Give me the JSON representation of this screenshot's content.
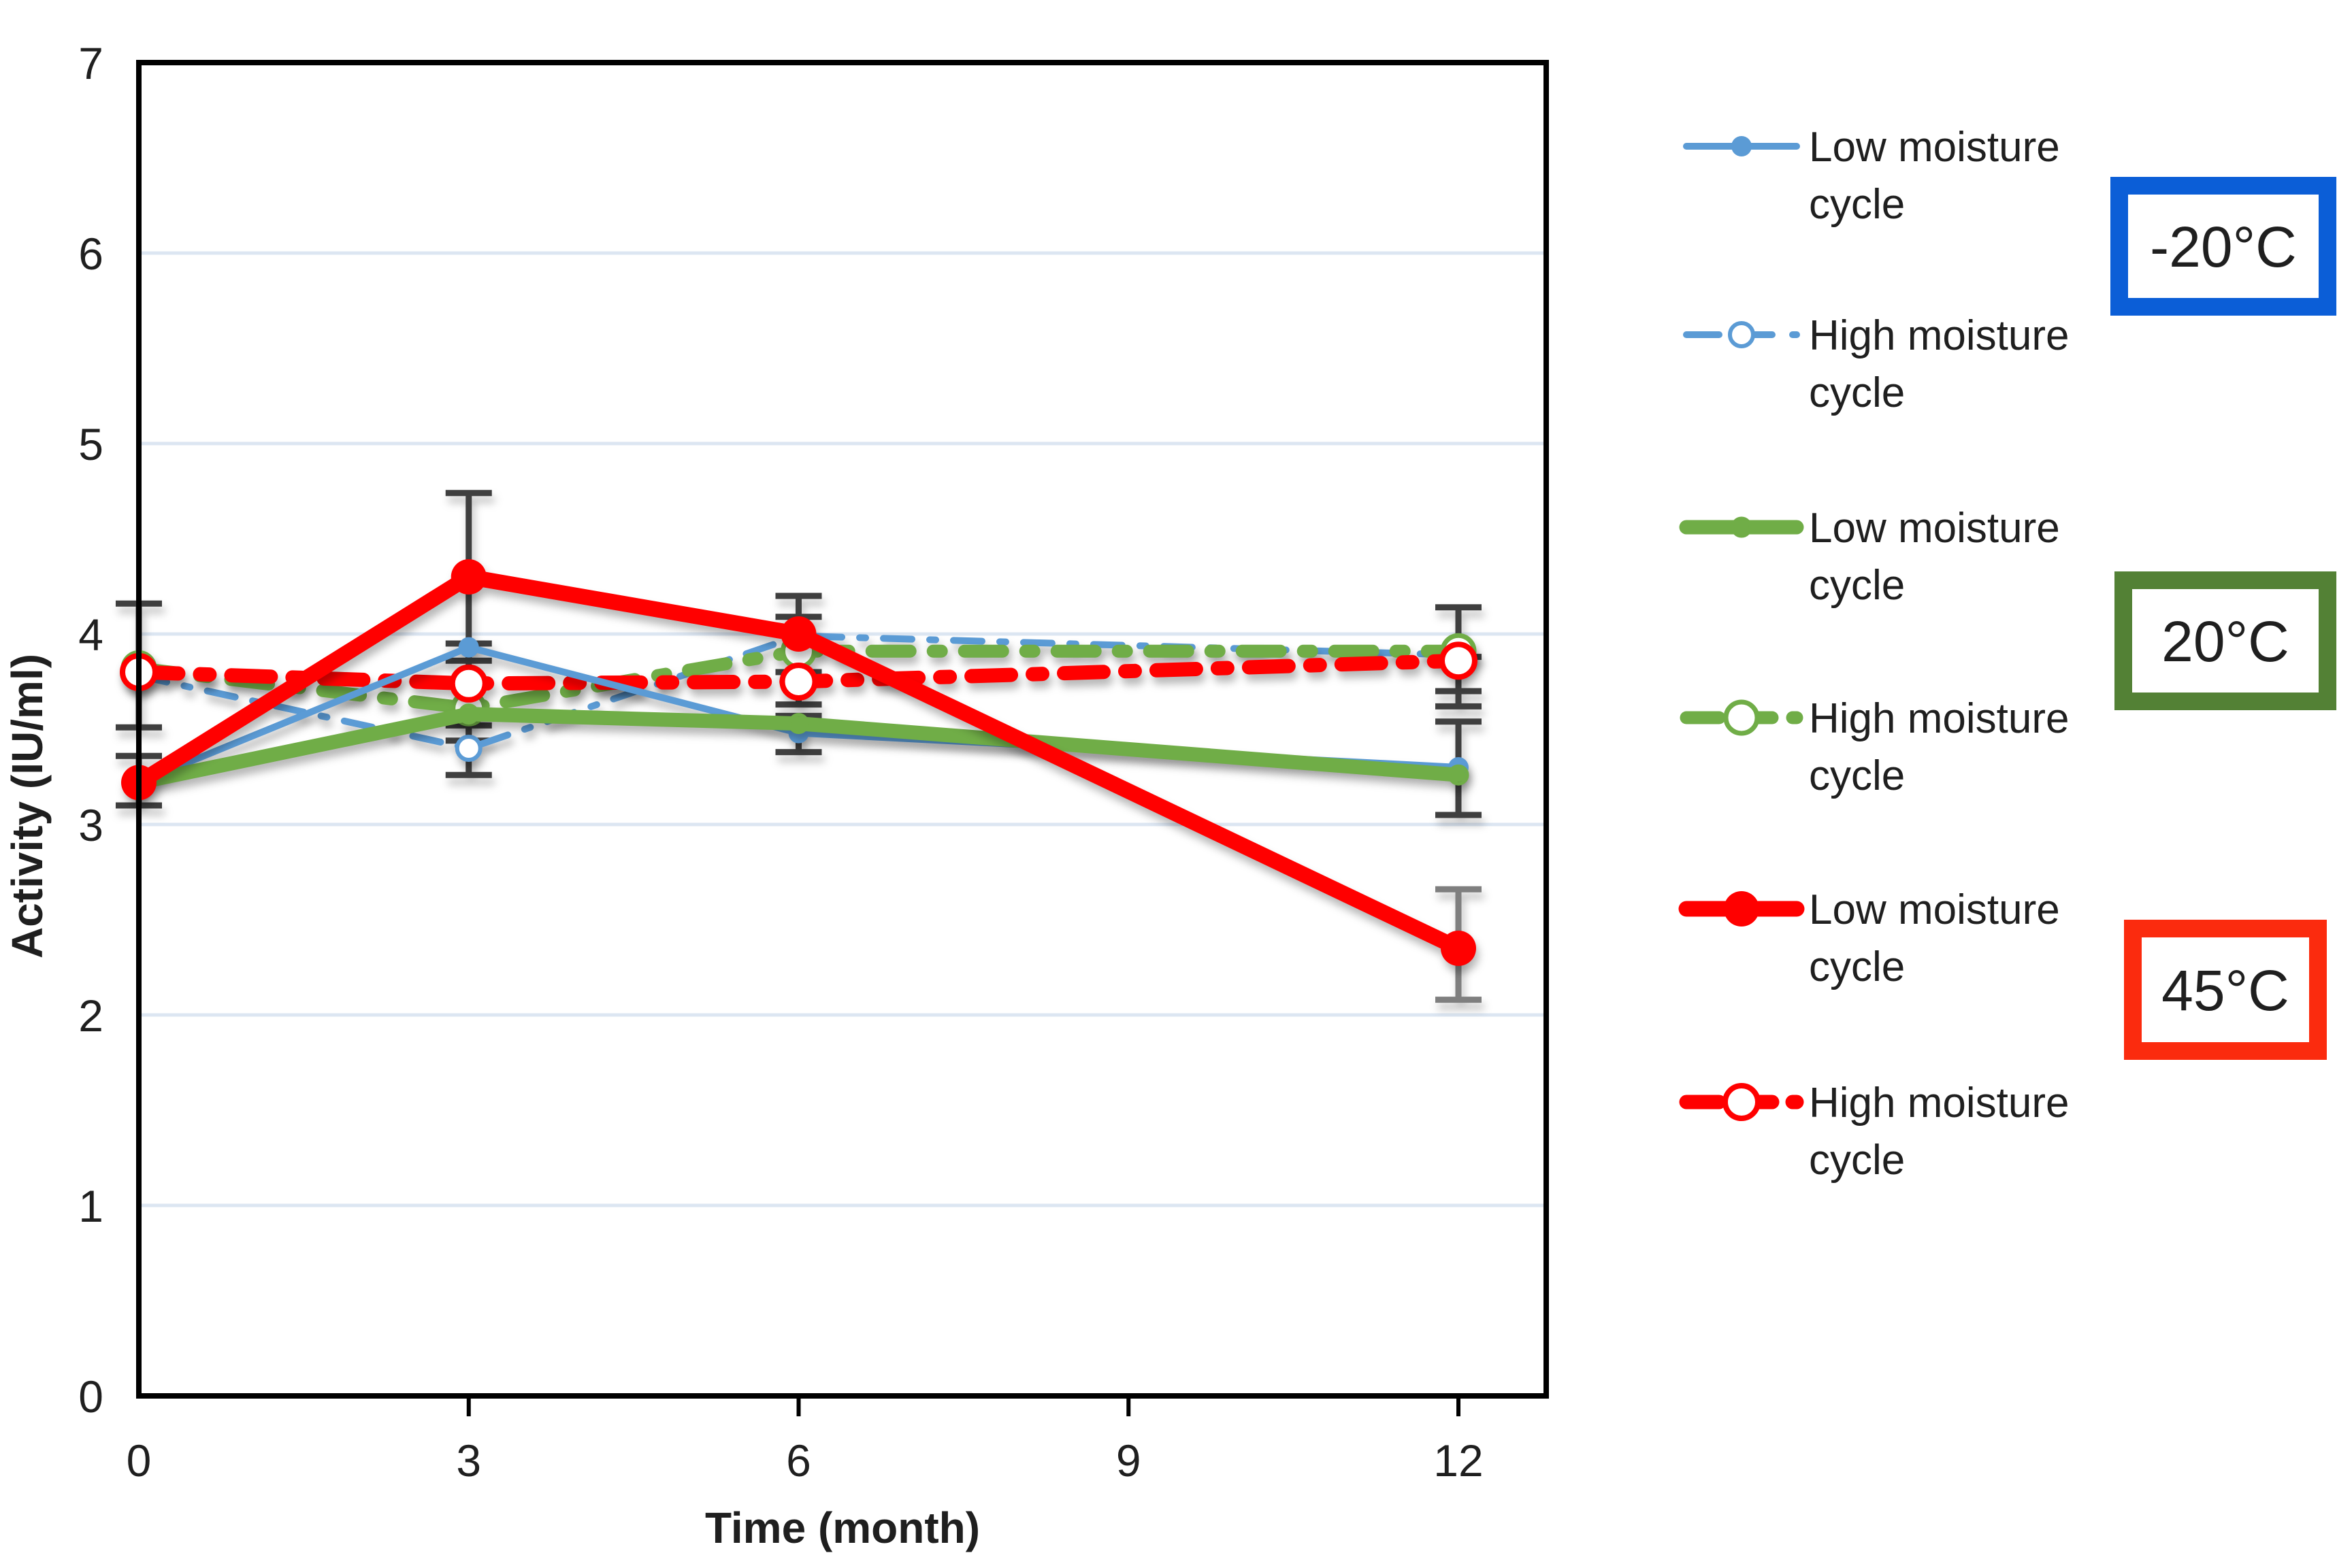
{
  "chart_data": {
    "type": "line",
    "title": "",
    "xlabel": "Time (month)",
    "ylabel": "Activity (IU/ml)",
    "x": [
      0,
      3,
      6,
      12
    ],
    "x_tick_labels": [
      "0",
      "3",
      "6",
      "9",
      "12"
    ],
    "x_tick_values": [
      0,
      3,
      6,
      9,
      12
    ],
    "y_tick_labels": [
      "0",
      "1",
      "2",
      "3",
      "4",
      "5",
      "6",
      "7"
    ],
    "y_tick_values": [
      0,
      1,
      2,
      3,
      4,
      5,
      6,
      7
    ],
    "xlim": [
      0,
      12.8
    ],
    "ylim": [
      0,
      7
    ],
    "grid": "horizontal",
    "legend_position": "right",
    "colors": {
      "blue": "#5B9BD5",
      "green": "#70AD47",
      "red": "#FF0000",
      "gridline": "#DCE6F2",
      "axis": "#000000",
      "error_bar": "#3F3F3F",
      "error_bar_light": "#7F7F7F"
    },
    "series": [
      {
        "id": "blue-solid",
        "temperature": "-20°C",
        "name": "Low moisture cycle",
        "color": "#5B9BD5",
        "style": "solid",
        "marker": "filled",
        "values": [
          3.22,
          3.93,
          3.48,
          3.3
        ]
      },
      {
        "id": "blue-dashed",
        "temperature": "-20°C",
        "name": "High moisture cycle",
        "color": "#5B9BD5",
        "style": "dashdot",
        "marker": "open",
        "values": [
          3.78,
          3.4,
          3.99,
          3.89
        ]
      },
      {
        "id": "green-solid",
        "temperature": "20°C",
        "name": "Low moisture cycle",
        "color": "#70AD47",
        "style": "solid",
        "marker": "ring-small",
        "values": [
          3.22,
          3.58,
          3.53,
          3.26
        ]
      },
      {
        "id": "green-dashed",
        "temperature": "20°C",
        "name": "High moisture cycle",
        "color": "#70AD47",
        "style": "dashdot",
        "marker": "open",
        "values": [
          3.82,
          3.61,
          3.91,
          3.91
        ]
      },
      {
        "id": "red-solid",
        "temperature": "45°C",
        "name": "Low moisture cycle",
        "color": "#FF0000",
        "style": "solid",
        "marker": "filled",
        "values": [
          3.22,
          4.3,
          4.0,
          2.35
        ]
      },
      {
        "id": "red-dashed",
        "temperature": "45°C",
        "name": "High moisture cycle",
        "color": "#FF0000",
        "style": "dashdot",
        "marker": "open",
        "values": [
          3.8,
          3.74,
          3.75,
          3.86
        ]
      }
    ],
    "error_bars": [
      {
        "x": 0,
        "lo": 3.51,
        "hi": 4.16,
        "tone": "dark"
      },
      {
        "x": 0,
        "lo": 3.1,
        "hi": 3.36,
        "tone": "dark"
      },
      {
        "x": 3,
        "lo": 3.86,
        "hi": 4.74,
        "tone": "dark"
      },
      {
        "x": 3,
        "lo": 3.44,
        "hi": 3.95,
        "tone": "dark"
      },
      {
        "x": 3,
        "lo": 3.26,
        "hi": 3.52,
        "tone": "dark"
      },
      {
        "x": 6,
        "lo": 3.8,
        "hi": 4.2,
        "tone": "dark"
      },
      {
        "x": 6,
        "lo": 3.63,
        "hi": 4.09,
        "tone": "dark"
      },
      {
        "x": 6,
        "lo": 3.38,
        "hi": 3.57,
        "tone": "dark"
      },
      {
        "x": 12,
        "lo": 3.7,
        "hi": 4.14,
        "tone": "dark"
      },
      {
        "x": 12,
        "lo": 3.62,
        "hi": 3.88,
        "tone": "dark"
      },
      {
        "x": 12,
        "lo": 3.05,
        "hi": 3.54,
        "tone": "dark"
      },
      {
        "x": 12,
        "lo": 2.08,
        "hi": 2.66,
        "tone": "light"
      }
    ]
  },
  "legend": {
    "entries": [
      {
        "series": "blue-solid",
        "line1": "Low moisture",
        "line2": "cycle"
      },
      {
        "series": "blue-dashed",
        "line1": "High moisture",
        "line2": "cycle"
      },
      {
        "series": "green-solid",
        "line1": "Low moisture",
        "line2": "cycle"
      },
      {
        "series": "green-dashed",
        "line1": "High moisture",
        "line2": "cycle"
      },
      {
        "series": "red-solid",
        "line1": "Low moisture",
        "line2": "cycle"
      },
      {
        "series": "red-dashed",
        "line1": "High moisture",
        "line2": "cycle"
      }
    ],
    "temperature_boxes": [
      {
        "label": "-20°C",
        "border_color": "#0B5ED7"
      },
      {
        "label": "20°C",
        "border_color": "#538135"
      },
      {
        "label": "45°C",
        "border_color": "#FB2B0E"
      }
    ]
  }
}
